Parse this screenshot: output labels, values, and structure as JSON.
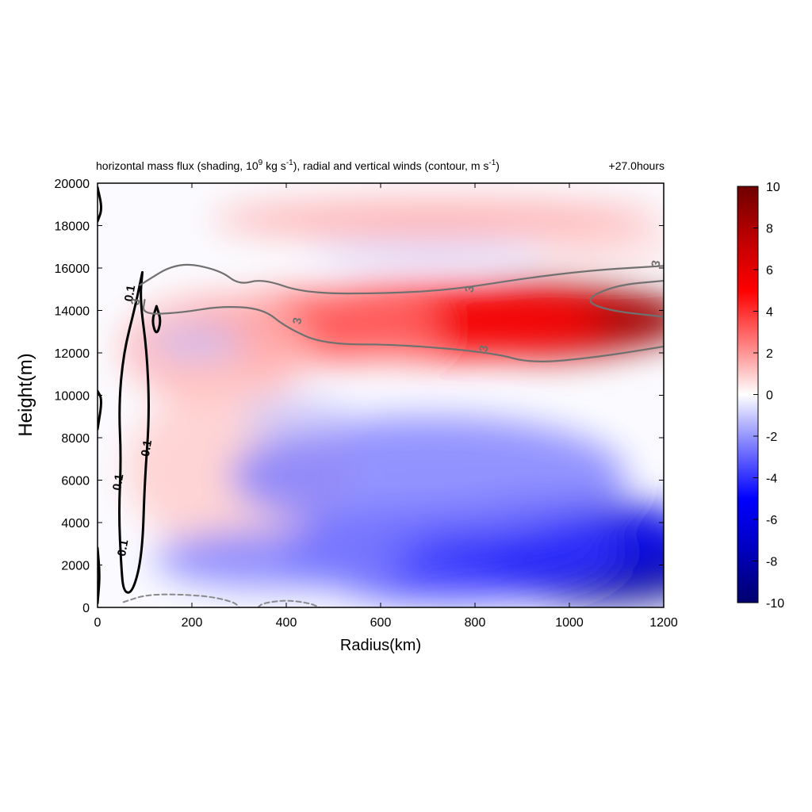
{
  "chart_data": {
    "type": "heatmap",
    "title_main": "horizontal mass flux (shading, 10",
    "title_exp1": "9",
    "title_mid": " kg s",
    "title_exp2": "-1",
    "title_mid2": "), radial and vertical winds (contour, m s",
    "title_exp3": "-1",
    "title_end": ")",
    "time_label": "+27.0hours",
    "xlabel": "Radius(km)",
    "ylabel": "Height(m)",
    "xlim": [
      0,
      1200
    ],
    "ylim": [
      0,
      20000
    ],
    "x_ticks": [
      0,
      200,
      400,
      600,
      800,
      1000,
      1200
    ],
    "y_ticks": [
      0,
      2000,
      4000,
      6000,
      8000,
      10000,
      12000,
      14000,
      16000,
      18000,
      20000
    ],
    "colorbar": {
      "range": [
        -10,
        10
      ],
      "ticks": [
        10,
        8,
        6,
        4,
        2,
        0,
        -2,
        -4,
        -6,
        -8,
        -10
      ],
      "low_color": "#00006e",
      "mid_color": "#ffffff",
      "high_color": "#6e0000"
    },
    "shading_blobs": [
      {
        "x": 1120,
        "y": 13600,
        "rx": 140,
        "ry": 1300,
        "value": 10
      },
      {
        "x": 950,
        "y": 13600,
        "rx": 260,
        "ry": 1900,
        "value": 8
      },
      {
        "x": 720,
        "y": 13500,
        "rx": 360,
        "ry": 1800,
        "value": 5
      },
      {
        "x": 450,
        "y": 13200,
        "rx": 280,
        "ry": 1700,
        "value": 3
      },
      {
        "x": 250,
        "y": 12200,
        "rx": 200,
        "ry": 2500,
        "value": 1.5
      },
      {
        "x": 720,
        "y": 18300,
        "rx": 480,
        "ry": 900,
        "value": 1.8
      },
      {
        "x": 1080,
        "y": 16900,
        "rx": 160,
        "ry": 500,
        "value": 1
      },
      {
        "x": 700,
        "y": 16700,
        "rx": 250,
        "ry": 450,
        "value": -1
      },
      {
        "x": 300,
        "y": 6500,
        "rx": 240,
        "ry": 4000,
        "value": 1
      },
      {
        "x": 1080,
        "y": 1800,
        "rx": 240,
        "ry": 1700,
        "value": -9
      },
      {
        "x": 980,
        "y": 3300,
        "rx": 300,
        "ry": 2000,
        "value": -6
      },
      {
        "x": 750,
        "y": 2600,
        "rx": 360,
        "ry": 2300,
        "value": -4
      },
      {
        "x": 700,
        "y": 6200,
        "rx": 420,
        "ry": 2800,
        "value": -2.5
      },
      {
        "x": 380,
        "y": 2300,
        "rx": 260,
        "ry": 1400,
        "value": -2.5
      },
      {
        "x": 420,
        "y": 9000,
        "rx": 120,
        "ry": 900,
        "value": -1
      },
      {
        "x": 210,
        "y": 12500,
        "rx": 100,
        "ry": 700,
        "value": -1.2
      }
    ],
    "contours": [
      {
        "value": "0.1",
        "type": "vertical wind",
        "style": "solid black",
        "points": [
          [
            95,
            15800
          ],
          [
            80,
            14200
          ],
          [
            55,
            12000
          ],
          [
            45,
            9500
          ],
          [
            50,
            7000
          ],
          [
            45,
            4500
          ],
          [
            50,
            2000
          ],
          [
            55,
            700
          ],
          [
            75,
            700
          ],
          [
            95,
            2500
          ],
          [
            100,
            6000
          ],
          [
            110,
            9000
          ],
          [
            105,
            12000
          ],
          [
            90,
            14500
          ],
          [
            95,
            15800
          ]
        ]
      },
      {
        "value": "0.1",
        "type": "vertical wind",
        "style": "solid black",
        "points": [
          [
            0,
            19800
          ],
          [
            10,
            18800
          ],
          [
            0,
            18200
          ]
        ]
      },
      {
        "value": "0.1",
        "type": "vertical wind",
        "style": "solid black",
        "points": [
          [
            0,
            10200
          ],
          [
            10,
            9800
          ],
          [
            0,
            8400
          ]
        ]
      },
      {
        "value": "0.1",
        "type": "vertical wind",
        "style": "solid black",
        "points": [
          [
            0,
            2800
          ],
          [
            5,
            1500
          ],
          [
            0,
            200
          ]
        ]
      },
      {
        "value": "0.1",
        "type": "vertical wind",
        "style": "solid black",
        "points": [
          [
            125,
            14200
          ],
          [
            135,
            13500
          ],
          [
            125,
            12800
          ],
          [
            115,
            13500
          ],
          [
            125,
            14200
          ]
        ]
      },
      {
        "value": "3",
        "type": "radial wind",
        "style": "solid gray",
        "points": [
          [
            90,
            15200
          ],
          [
            170,
            16300
          ],
          [
            260,
            15900
          ],
          [
            300,
            15200
          ],
          [
            350,
            15500
          ],
          [
            440,
            14800
          ],
          [
            620,
            14800
          ],
          [
            760,
            15000
          ],
          [
            900,
            15500
          ],
          [
            1050,
            15900
          ],
          [
            1200,
            16100
          ]
        ]
      },
      {
        "value": "3",
        "type": "radial wind",
        "style": "solid gray",
        "points": [
          [
            100,
            14500
          ],
          [
            95,
            13800
          ],
          [
            180,
            13900
          ],
          [
            260,
            14200
          ],
          [
            350,
            14100
          ],
          [
            400,
            13200
          ],
          [
            480,
            12400
          ],
          [
            640,
            12400
          ],
          [
            840,
            12000
          ],
          [
            920,
            11500
          ],
          [
            1060,
            11800
          ],
          [
            1200,
            12300
          ]
        ]
      },
      {
        "value": "3",
        "type": "radial wind",
        "style": "solid gray",
        "points": [
          [
            1200,
            15400
          ],
          [
            1100,
            15200
          ],
          [
            1030,
            14500
          ],
          [
            1080,
            14000
          ],
          [
            1200,
            13700
          ]
        ]
      },
      {
        "value": "",
        "type": "vertical wind",
        "style": "dashed gray",
        "points": [
          [
            55,
            250
          ],
          [
            110,
            650
          ],
          [
            230,
            560
          ],
          [
            290,
            250
          ],
          [
            300,
            0
          ]
        ]
      },
      {
        "value": "",
        "type": "vertical wind",
        "style": "dashed gray",
        "points": [
          [
            340,
            0
          ],
          [
            350,
            200
          ],
          [
            400,
            350
          ],
          [
            450,
            200
          ],
          [
            470,
            0
          ]
        ]
      }
    ],
    "contour_labels": [
      {
        "text": "0.1",
        "x": 70,
        "y": 14800,
        "color": "#000000"
      },
      {
        "text": "0.1",
        "x": 105,
        "y": 7500,
        "color": "#000000"
      },
      {
        "text": "0.1",
        "x": 45,
        "y": 5900,
        "color": "#000000"
      },
      {
        "text": "0.1",
        "x": 55,
        "y": 2800,
        "color": "#000000"
      },
      {
        "text": "3",
        "x": 82,
        "y": 14400,
        "color": "#707070"
      },
      {
        "text": "3",
        "x": 425,
        "y": 13500,
        "color": "#707070"
      },
      {
        "text": "3",
        "x": 790,
        "y": 15000,
        "color": "#707070"
      },
      {
        "text": "3",
        "x": 820,
        "y": 12200,
        "color": "#707070"
      },
      {
        "text": "3",
        "x": 1185,
        "y": 16200,
        "color": "#707070"
      }
    ]
  }
}
